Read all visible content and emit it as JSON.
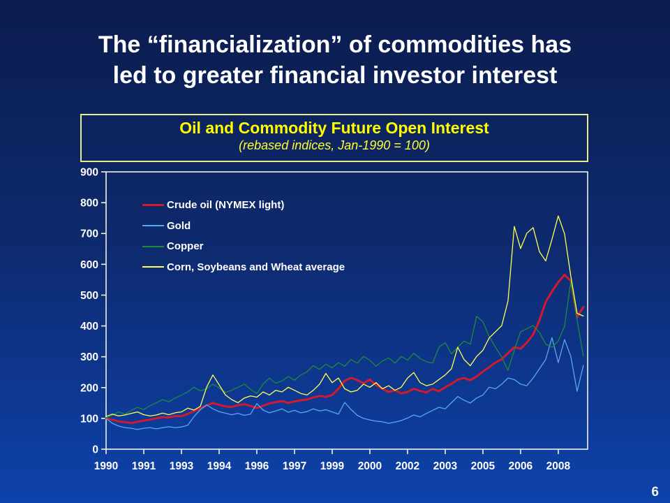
{
  "slide": {
    "title_line1": "The “financialization” of commodities has",
    "title_line2": "led to greater financial investor interest",
    "page_number": "6"
  },
  "colors": {
    "background_top": "#0b1c4e",
    "background_bottom": "#0d42ab",
    "slide_title": "#ffffff",
    "chart_box_border": "#e6ef8e",
    "chart_title": "#ffff00",
    "axis": "#f2f2e6",
    "tick_labels": "#ffffff",
    "crude_oil": "#d2192e",
    "gold": "#55aaee",
    "copper": "#1e8b3c",
    "grains": "#ffff55"
  },
  "chart_data": {
    "type": "line",
    "title": "Oil and Commodity Future Open Interest",
    "subtitle": "(rebased indices, Jan-1990 = 100)",
    "xlabel": "",
    "ylabel": "",
    "grid": false,
    "legend_position": "top-left",
    "ylim": [
      0,
      900
    ],
    "xlim": [
      1990,
      2009.17
    ],
    "y_ticks": [
      0,
      100,
      200,
      300,
      400,
      500,
      600,
      700,
      800,
      900
    ],
    "x_ticks": [
      {
        "year": 1990.0,
        "label": "1990"
      },
      {
        "year": 1991.5,
        "label": "1991"
      },
      {
        "year": 1993.0,
        "label": "1993"
      },
      {
        "year": 1994.5,
        "label": "1994"
      },
      {
        "year": 1996.0,
        "label": "1996"
      },
      {
        "year": 1997.5,
        "label": "1997"
      },
      {
        "year": 1999.0,
        "label": "1999"
      },
      {
        "year": 2000.5,
        "label": "2000"
      },
      {
        "year": 2002.0,
        "label": "2002"
      },
      {
        "year": 2003.5,
        "label": "2003"
      },
      {
        "year": 2005.0,
        "label": "2005"
      },
      {
        "year": 2006.5,
        "label": "2006"
      },
      {
        "year": 2008.0,
        "label": "2008"
      }
    ],
    "x_start": 1990,
    "x_step_years": 0.25,
    "series": [
      {
        "name": "Crude oil (NYMEX light)",
        "color": "#d2192e",
        "width": 3,
        "values": [
          100,
          96,
          90,
          88,
          85,
          89,
          93,
          96,
          100,
          104,
          103,
          108,
          107,
          114,
          124,
          132,
          142,
          150,
          144,
          139,
          137,
          143,
          146,
          140,
          134,
          141,
          148,
          153,
          156,
          150,
          155,
          159,
          161,
          168,
          173,
          170,
          176,
          196,
          222,
          232,
          224,
          214,
          226,
          208,
          196,
          186,
          191,
          181,
          186,
          196,
          189,
          184,
          196,
          188,
          201,
          212,
          226,
          231,
          224,
          236,
          252,
          266,
          281,
          292,
          312,
          331,
          326,
          346,
          372,
          418,
          478,
          512,
          542,
          566,
          546,
          428,
          462
        ]
      },
      {
        "name": "Gold",
        "color": "#55aaee",
        "width": 1.3,
        "values": [
          100,
          84,
          75,
          70,
          68,
          64,
          68,
          70,
          66,
          70,
          73,
          70,
          72,
          78,
          106,
          128,
          144,
          131,
          122,
          117,
          112,
          116,
          110,
          114,
          148,
          127,
          118,
          124,
          131,
          120,
          126,
          118,
          122,
          131,
          124,
          128,
          121,
          114,
          152,
          129,
          110,
          100,
          95,
          91,
          89,
          84,
          88,
          93,
          101,
          111,
          105,
          116,
          126,
          136,
          131,
          151,
          171,
          159,
          150,
          166,
          176,
          201,
          196,
          211,
          231,
          226,
          211,
          206,
          231,
          261,
          291,
          362,
          281,
          356,
          301,
          188,
          272
        ]
      },
      {
        "name": "Copper",
        "color": "#1e8b3c",
        "width": 1.3,
        "values": [
          100,
          111,
          121,
          114,
          126,
          136,
          129,
          141,
          151,
          161,
          154,
          166,
          176,
          186,
          201,
          189,
          196,
          211,
          199,
          184,
          191,
          201,
          211,
          194,
          181,
          211,
          231,
          214,
          221,
          236,
          224,
          241,
          251,
          271,
          259,
          276,
          264,
          281,
          269,
          291,
          279,
          301,
          289,
          269,
          286,
          296,
          279,
          301,
          289,
          311,
          294,
          284,
          279,
          331,
          346,
          309,
          331,
          351,
          341,
          431,
          414,
          366,
          331,
          299,
          256,
          321,
          381,
          391,
          401,
          379,
          341,
          331,
          351,
          399,
          546,
          419,
          301
        ]
      },
      {
        "name": "Corn, Soybeans and Wheat average",
        "color": "#ffff55",
        "width": 1.3,
        "values": [
          106,
          114,
          108,
          111,
          116,
          121,
          112,
          108,
          111,
          117,
          112,
          118,
          121,
          133,
          127,
          139,
          201,
          241,
          209,
          176,
          161,
          151,
          166,
          173,
          169,
          186,
          176,
          191,
          186,
          201,
          191,
          181,
          176,
          191,
          211,
          246,
          216,
          231,
          196,
          186,
          191,
          211,
          201,
          216,
          196,
          206,
          191,
          201,
          231,
          249,
          216,
          206,
          211,
          226,
          241,
          261,
          331,
          291,
          271,
          301,
          321,
          361,
          381,
          401,
          481,
          723,
          651,
          701,
          719,
          641,
          611,
          681,
          757,
          699,
          561,
          441,
          432
        ]
      }
    ]
  }
}
